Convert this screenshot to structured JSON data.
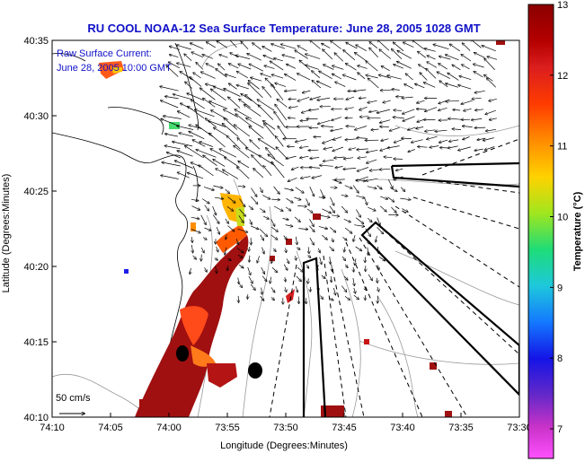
{
  "title": "RU COOL  NOAA-12  Sea Surface Temperature:  June 28, 2005 1028 GMT",
  "current_note": {
    "line1": "Raw Surface Current:",
    "line2": "June 28, 2005 10:00 GMT"
  },
  "scale_label": "50 cm/s",
  "x_axis": {
    "label": "Longitude (Degrees:Minutes)",
    "ticks": [
      "74:10",
      "74:05",
      "74:00",
      "73:55",
      "73:50",
      "73:45",
      "73:40",
      "73:35",
      "73:30"
    ]
  },
  "y_axis": {
    "label": "Latitude (Degrees:Minutes)",
    "ticks": [
      "40:35",
      "40:30",
      "40:25",
      "40:20",
      "40:15",
      "40:10"
    ]
  },
  "colorbar": {
    "label": "Temperature (°C)",
    "ticks": [
      "13",
      "12",
      "11",
      "10",
      "9",
      "8",
      "7"
    ],
    "colors": [
      "#8b0000",
      "#c81414",
      "#ff3c00",
      "#ff8c00",
      "#ffd200",
      "#a0e61e",
      "#1edc78",
      "#1ec8dc",
      "#1478ff",
      "#1414e6",
      "#6428c8",
      "#c832c8",
      "#ff50ff"
    ]
  }
}
